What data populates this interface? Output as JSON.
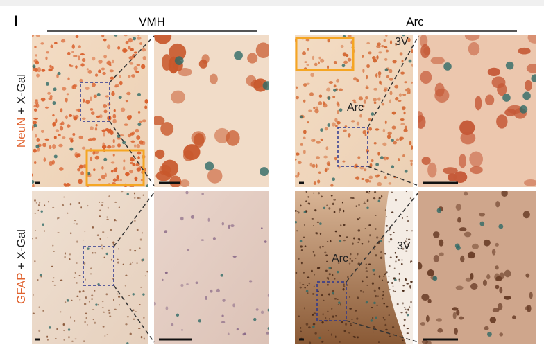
{
  "panel_label": "I",
  "columns": [
    {
      "title": "VMH"
    },
    {
      "title": "Arc"
    }
  ],
  "rows": [
    {
      "stain": "NeuN",
      "suffix": "+ X-Gal"
    },
    {
      "stain": "GFAP",
      "suffix": "+ X-Gal"
    }
  ],
  "annotations": {
    "arc_top_ventricle": "3V",
    "arc_top_nucleus": "Arc",
    "arc_bottom_nucleus": "Arc",
    "arc_bottom_ventricle": "3V"
  }
}
